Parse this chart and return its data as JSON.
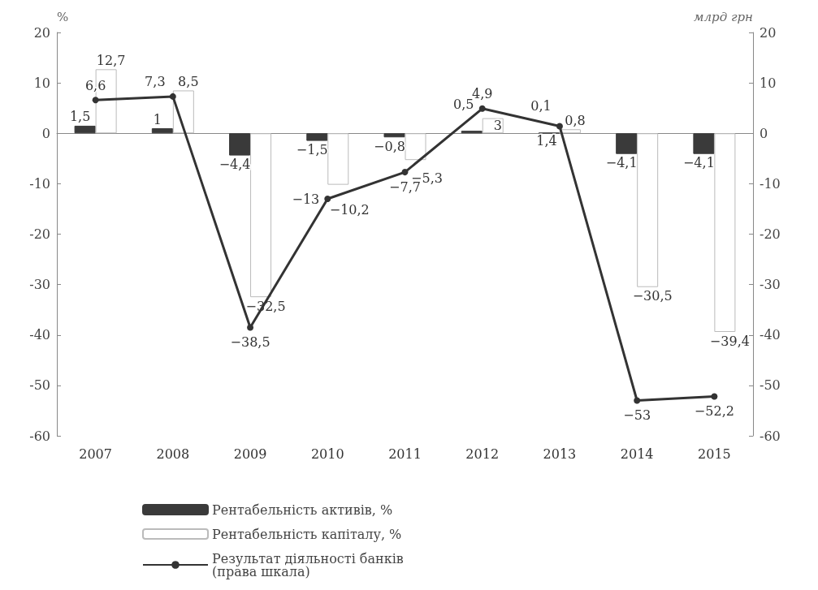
{
  "chart_data": {
    "type": "bar",
    "categories": [
      "2007",
      "2008",
      "2009",
      "2010",
      "2011",
      "2012",
      "2013",
      "2014",
      "2015"
    ],
    "ylabel": "%",
    "y2label": "млрд грн",
    "ylim": [
      -60,
      20
    ],
    "yticks": [
      -60,
      -50,
      -40,
      -30,
      -20,
      -10,
      0,
      10,
      20
    ],
    "y2lim": [
      -60,
      20
    ],
    "y2ticks": [
      -60,
      -50,
      -40,
      -30,
      -20,
      -10,
      0,
      10,
      20
    ],
    "legend": "bottom",
    "marker": "circle",
    "line_style": "solid",
    "series": [
      {
        "name": "Рентабельність активів, %",
        "color": "#3a3a3a",
        "values": [
          1.5,
          1,
          -4.4,
          -1.5,
          -0.8,
          0.5,
          0.1,
          -4.1,
          -4.1
        ],
        "value_labels": [
          "1,5",
          "1",
          "−4,4",
          "−1,5",
          "−0,8",
          "0,5",
          "0,1",
          "−4,1",
          "−4,1"
        ]
      },
      {
        "name": "Рентабельність капіталу, %",
        "color": "#ffffff",
        "values": [
          12.7,
          8.5,
          -32.5,
          -10.2,
          -5.3,
          3,
          0.8,
          -30.5,
          -39.4
        ],
        "value_labels": [
          "12,7",
          "8,5",
          "−32,5",
          "−10,2",
          "−5,3",
          "3",
          "0,8",
          "−30,5",
          "−39,4"
        ]
      },
      {
        "name": "Результат діяльності банків\n(права шкала)",
        "type": "line",
        "axis": "y2",
        "color": "#333333",
        "values": [
          6.6,
          7.3,
          -38.5,
          -13,
          -7.7,
          4.9,
          1.4,
          -53,
          -52.2
        ],
        "value_labels": [
          "6,6",
          "7,3",
          "−38,5",
          "−13",
          "−7,7",
          "4,9",
          "1,4",
          "−53",
          "−52,2"
        ]
      }
    ]
  }
}
